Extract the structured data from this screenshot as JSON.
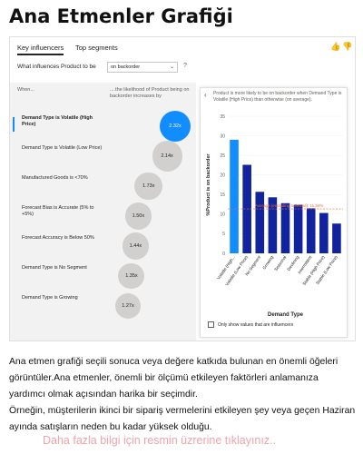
{
  "page_title": "Ana Etmenler Grafiği",
  "tabs": [
    {
      "label": "Key influencers",
      "active": true
    },
    {
      "label": "Top segments",
      "active": false
    }
  ],
  "feedback": {
    "thumb_up": "👍",
    "thumb_down": "👎"
  },
  "question": {
    "label": "What influences Product to be",
    "selected_value": "on backorder",
    "help": "?"
  },
  "influencer_columns": {
    "when": "When...",
    "likelihood": "....the likelihood of Product being on backorder increases by"
  },
  "influencers": [
    {
      "label": "Demand Type is Volatile (High Price)",
      "value": 2.32,
      "value_label": "2.32x",
      "selected": true
    },
    {
      "label": "Demand Type is Volatile (Low Price)",
      "value": 2.14,
      "value_label": "2.14x",
      "selected": false
    },
    {
      "label": "Manufactured Goods is <70%",
      "value": 1.73,
      "value_label": "1.73x",
      "selected": false
    },
    {
      "label": "Forecast Bias is Accurate (5% to +5%)",
      "value": 1.5,
      "value_label": "1.50x",
      "selected": false
    },
    {
      "label": "Forecast Accuracy is Below 50%",
      "value": 1.44,
      "value_label": "1.44x",
      "selected": false
    },
    {
      "label": "Demand Type is No Segment",
      "value": 1.35,
      "value_label": "1.35x",
      "selected": false
    },
    {
      "label": "Demand Type is Growing",
      "value": 1.27,
      "value_label": "1.27x",
      "selected": false
    }
  ],
  "detail": {
    "heading": "Product is more likely to be on backorder when Demand Type is Volatile (High Price) than otherwise (on average).",
    "checkbox_label": "Only show values that are influencers"
  },
  "chart_data": {
    "type": "bar",
    "categories": [
      "Volatile (High...",
      "Volatile (Low Price)",
      "No Segment",
      "Growing",
      "Seasonal",
      "Declining",
      "Intermittent",
      "Stable (High Price)",
      "Stable (Low Price)"
    ],
    "values": [
      29,
      22.6,
      15.7,
      14.3,
      12.8,
      12.4,
      11.5,
      10.3,
      7.6
    ],
    "highlight_index": 0,
    "average": 11.34,
    "average_label": "Average (excluding selected): 11.34%",
    "ylim": [
      0,
      35
    ],
    "yticks": [
      0,
      5,
      10,
      15,
      20,
      25,
      30,
      35
    ],
    "ytick_labels": [
      "0",
      "5",
      "10",
      "15",
      "20",
      "25",
      "30",
      "35"
    ],
    "ylabel": "%Product is on backorder",
    "xlabel": "Demand Type",
    "colors": {
      "highlight": "#118dff",
      "default": "#12239e",
      "average_line": "#e66c37"
    }
  },
  "description_lines": [
    "Ana etmen grafiği seçili sonuca veya değere katkıda bulunan en önemli öğeleri görüntüler.Ana etmenler, önemli bir ölçümü etkileyen faktörleri anlamanıza yardımcı olmak açısından harika bir seçimdir.",
    "Örneğin, müşterilerin ikinci bir sipariş vermelerini etkileyen şey veya geçen Haziran ayında satışların neden bu kadar yüksek olduğu."
  ],
  "more_link": "Daha fazla bilgi için resmin üzrerine tıklayınız.."
}
